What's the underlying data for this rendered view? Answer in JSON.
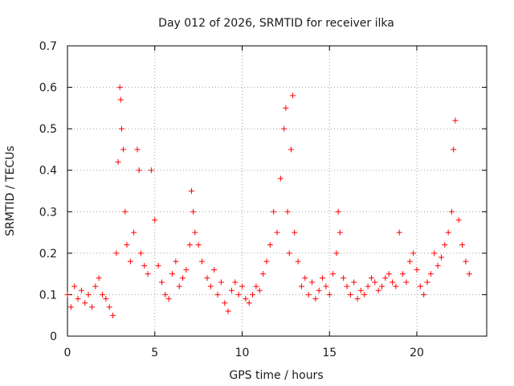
{
  "chart_data": {
    "type": "scatter",
    "title": "Day 012 of 2026, SRMTID for receiver ilka",
    "xlabel": "GPS time / hours",
    "ylabel": "SRMTID / TECUs",
    "xlim": [
      0,
      24
    ],
    "ylim": [
      0,
      0.7
    ],
    "xticks": [
      0,
      5,
      10,
      15,
      20
    ],
    "yticks": [
      0,
      0.1,
      0.2,
      0.3,
      0.4,
      0.5,
      0.6,
      0.7
    ],
    "xtick_labels": [
      "0",
      "5",
      "10",
      "15",
      "20"
    ],
    "ytick_labels": [
      "0",
      "0.1",
      "0.2",
      "0.3",
      "0.4",
      "0.5",
      "0.6",
      "0.7"
    ],
    "grid": true,
    "marker": "plus",
    "series": [
      {
        "name": "SRMTID",
        "color": "#ff0000",
        "x": [
          0.0,
          0.2,
          0.4,
          0.6,
          0.8,
          1.0,
          1.2,
          1.4,
          1.6,
          1.8,
          2.0,
          2.2,
          2.4,
          2.6,
          2.8,
          2.9,
          3.0,
          3.05,
          3.1,
          3.2,
          3.3,
          3.4,
          3.6,
          3.8,
          4.0,
          4.1,
          4.2,
          4.4,
          4.6,
          4.8,
          5.0,
          5.2,
          5.4,
          5.6,
          5.8,
          6.0,
          6.2,
          6.4,
          6.6,
          6.8,
          7.0,
          7.1,
          7.2,
          7.3,
          7.5,
          7.7,
          8.0,
          8.2,
          8.4,
          8.6,
          8.8,
          9.0,
          9.2,
          9.4,
          9.6,
          9.8,
          10.0,
          10.2,
          10.4,
          10.6,
          10.8,
          11.0,
          11.2,
          11.4,
          11.6,
          11.8,
          12.0,
          12.2,
          12.4,
          12.5,
          12.6,
          12.7,
          12.8,
          12.9,
          13.0,
          13.2,
          13.4,
          13.6,
          13.8,
          14.0,
          14.2,
          14.4,
          14.6,
          14.8,
          15.0,
          15.2,
          15.4,
          15.5,
          15.6,
          15.8,
          16.0,
          16.2,
          16.4,
          16.6,
          16.8,
          17.0,
          17.2,
          17.4,
          17.6,
          17.8,
          18.0,
          18.2,
          18.4,
          18.6,
          18.8,
          19.0,
          19.2,
          19.4,
          19.6,
          19.8,
          20.0,
          20.2,
          20.4,
          20.6,
          20.8,
          21.0,
          21.2,
          21.4,
          21.6,
          21.8,
          22.0,
          22.1,
          22.2,
          22.4,
          22.6,
          22.8,
          23.0
        ],
        "y": [
          0.1,
          0.07,
          0.12,
          0.09,
          0.11,
          0.08,
          0.1,
          0.07,
          0.12,
          0.14,
          0.1,
          0.09,
          0.07,
          0.05,
          0.2,
          0.42,
          0.6,
          0.57,
          0.5,
          0.45,
          0.3,
          0.22,
          0.18,
          0.25,
          0.45,
          0.4,
          0.2,
          0.17,
          0.15,
          0.4,
          0.28,
          0.17,
          0.13,
          0.1,
          0.09,
          0.15,
          0.18,
          0.12,
          0.14,
          0.16,
          0.22,
          0.35,
          0.3,
          0.25,
          0.22,
          0.18,
          0.14,
          0.12,
          0.16,
          0.1,
          0.13,
          0.08,
          0.06,
          0.11,
          0.13,
          0.1,
          0.12,
          0.09,
          0.08,
          0.1,
          0.12,
          0.11,
          0.15,
          0.18,
          0.22,
          0.3,
          0.25,
          0.38,
          0.5,
          0.55,
          0.3,
          0.2,
          0.45,
          0.58,
          0.25,
          0.18,
          0.12,
          0.14,
          0.1,
          0.13,
          0.09,
          0.11,
          0.14,
          0.12,
          0.1,
          0.15,
          0.2,
          0.3,
          0.25,
          0.14,
          0.12,
          0.1,
          0.13,
          0.09,
          0.11,
          0.1,
          0.12,
          0.14,
          0.13,
          0.11,
          0.12,
          0.14,
          0.15,
          0.13,
          0.12,
          0.25,
          0.15,
          0.13,
          0.18,
          0.2,
          0.16,
          0.12,
          0.1,
          0.13,
          0.15,
          0.2,
          0.17,
          0.19,
          0.22,
          0.25,
          0.3,
          0.45,
          0.52,
          0.28,
          0.22,
          0.18,
          0.15
        ]
      }
    ]
  }
}
